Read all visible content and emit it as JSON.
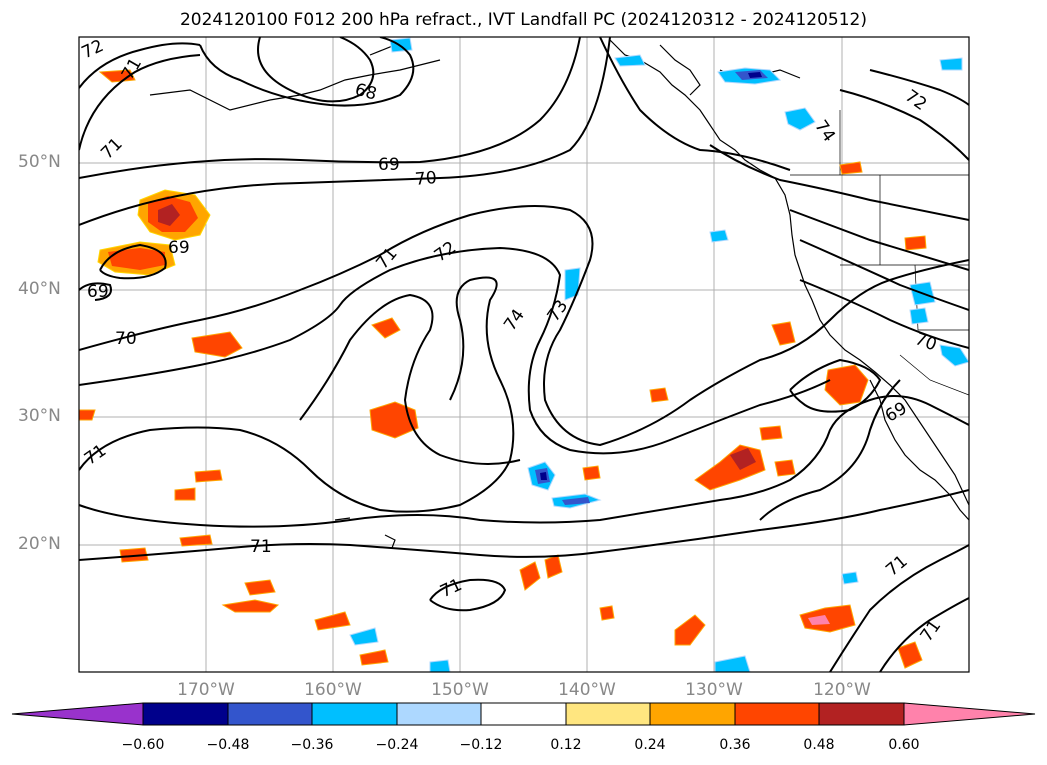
{
  "title": "2024120100 F012 200 hPa refract., IVT Landfall PC (2024120312 - 2024120512)",
  "map": {
    "projection": "PlateCarree",
    "lon_range": [
      -180,
      -110
    ],
    "lat_range": [
      10,
      60
    ],
    "gridlines": true,
    "lat_tick_labels": [
      "50°N",
      "40°N",
      "30°N",
      "20°N"
    ],
    "lon_tick_labels": [
      "170°W",
      "160°W",
      "150°W",
      "140°W",
      "130°W",
      "120°W"
    ],
    "contour_color": "#000000",
    "contour_labels": [
      "72",
      "71",
      "68",
      "69",
      "70",
      "71",
      "72",
      "69",
      "69",
      "70",
      "74",
      "73",
      "71",
      "71",
      "71",
      "71",
      "72",
      "74",
      "70",
      "69",
      "71",
      "71"
    ]
  },
  "colorbar": {
    "tick_labels": [
      "−0.60",
      "−0.48",
      "−0.36",
      "−0.24",
      "−0.12",
      "0.12",
      "0.24",
      "0.36",
      "0.48",
      "0.60"
    ],
    "colors": [
      "#9932cc",
      "#00008b",
      "#3355cc",
      "#00bfff",
      "#add8ff",
      "#ffffff",
      "#ffe680",
      "#ffa500",
      "#ff4500",
      "#b22222",
      "#ff82ab"
    ]
  }
}
